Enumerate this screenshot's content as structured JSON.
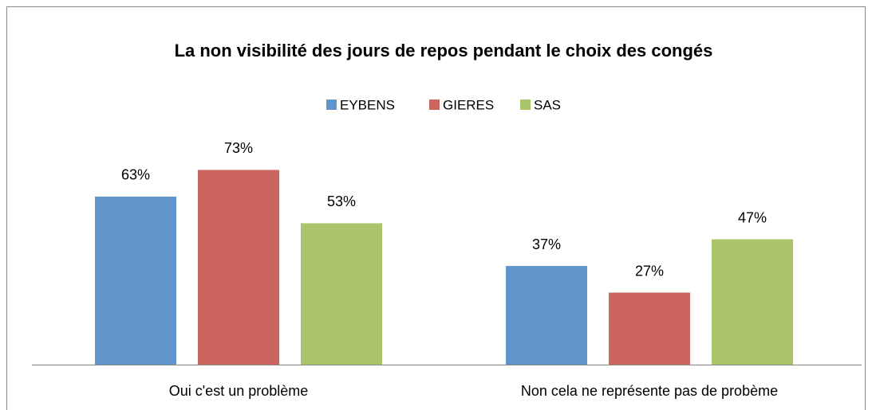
{
  "chart_data": {
    "type": "bar",
    "title": "La non visibilité des jours de repos pendant le choix des congés",
    "categories": [
      "Oui c'est un problème",
      "Non cela ne représente pas de probème"
    ],
    "series": [
      {
        "name": "EYBENS",
        "color": "#6096cc",
        "values": [
          63,
          37
        ],
        "value_labels": [
          "63%",
          "37%"
        ]
      },
      {
        "name": "GIERES",
        "color": "#cd655f",
        "values": [
          73,
          27
        ],
        "value_labels": [
          "73%",
          "27%"
        ]
      },
      {
        "name": "SAS",
        "color": "#a9c46b",
        "values": [
          53,
          47
        ],
        "value_labels": [
          "53%",
          "47%"
        ]
      }
    ],
    "legend": "top"
  }
}
